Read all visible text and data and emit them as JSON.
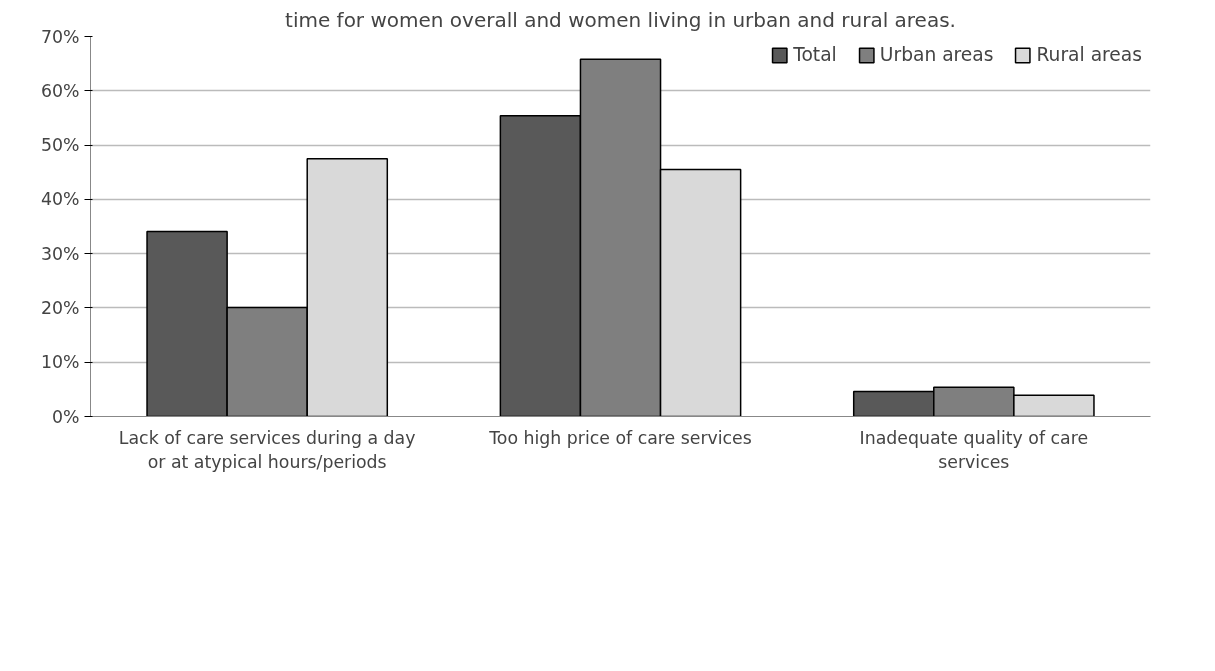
{
  "chart_data": {
    "type": "bar",
    "title": "time for women overall and women living in urban and rural areas.",
    "categories": [
      "Lack of care services during a day  or at atypical hours/periods",
      "Too high price of care services",
      "Inadequate quality of care services"
    ],
    "series": [
      {
        "name": "Total",
        "color": "#595959",
        "values": [
          34.1,
          55.4,
          4.6
        ]
      },
      {
        "name": "Urban areas",
        "color": "#7f7f7f",
        "values": [
          20.1,
          65.8,
          5.4
        ]
      },
      {
        "name": "Rural areas",
        "color": "#d9d9d9",
        "values": [
          47.5,
          45.5,
          3.9
        ]
      }
    ],
    "ylim": [
      0,
      70
    ],
    "yticks": [
      {
        "value": 0,
        "label": "0%"
      },
      {
        "value": 10,
        "label": "10%"
      },
      {
        "value": 20,
        "label": "20%"
      },
      {
        "value": 30,
        "label": "30%"
      },
      {
        "value": 40,
        "label": "40%"
      },
      {
        "value": 50,
        "label": "50%"
      },
      {
        "value": 60,
        "label": "60%"
      },
      {
        "value": 70,
        "label": "70%"
      }
    ],
    "grid": "y",
    "legend": "top right"
  }
}
